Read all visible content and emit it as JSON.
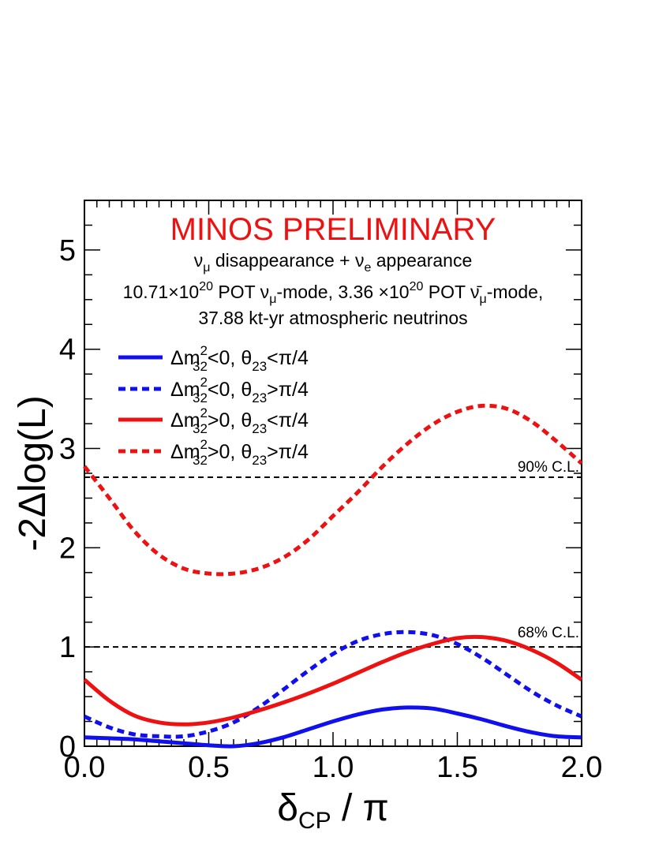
{
  "chart_data": {
    "type": "line",
    "title": "MINOS PRELIMINARY",
    "subtitle_lines": [
      [
        "ν",
        "μ",
        " disappearance + ν",
        "e",
        " appearance"
      ],
      [
        "10.71×10",
        "20",
        " POT ν",
        "μ",
        "-mode, 3.36 ×10",
        "20",
        " POT ν̄",
        "μ",
        "-mode,"
      ],
      [
        "37.88 kt-yr atmospheric neutrinos"
      ]
    ],
    "xlabel": {
      "main": "δ",
      "sub": "CP",
      "rest": " / π"
    },
    "ylabel": "-2Δlog(L)",
    "xlim": [
      0,
      2
    ],
    "ylim": [
      0,
      5.5
    ],
    "x_ticks": [
      0,
      0.5,
      1.0,
      1.5,
      2.0
    ],
    "x_tick_labels": [
      "0.0",
      "0.5",
      "1.0",
      "1.5",
      "2.0"
    ],
    "y_ticks": [
      0,
      1,
      2,
      3,
      4,
      5
    ],
    "y_tick_labels": [
      "0",
      "1",
      "2",
      "3",
      "4",
      "5"
    ],
    "grid": false,
    "legend_position": "upper-left",
    "reference_lines": [
      {
        "name": "90% C.L.",
        "y": 2.71,
        "label": "90% C.L."
      },
      {
        "name": "68% C.L.",
        "y": 1.0,
        "label": "68% C.L."
      }
    ],
    "series": [
      {
        "name": "Δm²32<0, θ23<π/4",
        "legend": {
          "a": "Δm",
          "sup": "2",
          "sub": "32",
          "b": "<0,  θ",
          "sub2": "23",
          "c": "<π/4"
        },
        "color": "#1010ee",
        "style": "solid",
        "x": [
          0,
          0.1,
          0.2,
          0.3,
          0.4,
          0.5,
          0.6,
          0.7,
          0.8,
          0.9,
          1.0,
          1.1,
          1.2,
          1.3,
          1.4,
          1.5,
          1.6,
          1.7,
          1.8,
          1.9,
          2.0
        ],
        "y": [
          0.09,
          0.08,
          0.07,
          0.05,
          0.03,
          0.01,
          0.0,
          0.03,
          0.09,
          0.17,
          0.25,
          0.32,
          0.37,
          0.39,
          0.38,
          0.33,
          0.27,
          0.2,
          0.14,
          0.1,
          0.09
        ]
      },
      {
        "name": "Δm²32<0, θ23>π/4",
        "legend": {
          "a": "Δm",
          "sup": "2",
          "sub": "32",
          "b": "<0,  θ",
          "sub2": "23",
          "c": ">π/4"
        },
        "color": "#1010ee",
        "style": "dashed",
        "x": [
          0,
          0.1,
          0.2,
          0.3,
          0.4,
          0.5,
          0.6,
          0.7,
          0.8,
          0.9,
          1.0,
          1.1,
          1.2,
          1.3,
          1.4,
          1.5,
          1.6,
          1.7,
          1.8,
          1.9,
          2.0
        ],
        "y": [
          0.3,
          0.19,
          0.12,
          0.1,
          0.1,
          0.15,
          0.24,
          0.39,
          0.57,
          0.76,
          0.93,
          1.06,
          1.13,
          1.15,
          1.12,
          1.03,
          0.89,
          0.72,
          0.55,
          0.41,
          0.3
        ]
      },
      {
        "name": "Δm²32>0, θ23<π/4",
        "legend": {
          "a": "Δm",
          "sup": "2",
          "sub": "32",
          "b": ">0,  θ",
          "sub2": "23",
          "c": "<π/4"
        },
        "color": "#ee1111",
        "style": "solid",
        "x": [
          0,
          0.1,
          0.2,
          0.3,
          0.4,
          0.5,
          0.6,
          0.7,
          0.8,
          0.9,
          1.0,
          1.1,
          1.2,
          1.3,
          1.4,
          1.5,
          1.6,
          1.7,
          1.8,
          1.9,
          2.0
        ],
        "y": [
          0.67,
          0.46,
          0.31,
          0.24,
          0.22,
          0.24,
          0.29,
          0.36,
          0.44,
          0.53,
          0.63,
          0.74,
          0.85,
          0.95,
          1.03,
          1.09,
          1.1,
          1.06,
          0.97,
          0.84,
          0.67
        ]
      },
      {
        "name": "Δm²32>0, θ23>π/4",
        "legend": {
          "a": "Δm",
          "sup": "2",
          "sub": "32",
          "b": ">0,  θ",
          "sub2": "23",
          "c": ">π/4"
        },
        "color": "#ee1111",
        "style": "dashed",
        "x": [
          0,
          0.1,
          0.2,
          0.3,
          0.4,
          0.5,
          0.6,
          0.7,
          0.8,
          0.9,
          1.0,
          1.1,
          1.2,
          1.3,
          1.4,
          1.5,
          1.6,
          1.7,
          1.8,
          1.9,
          2.0
        ],
        "y": [
          2.82,
          2.5,
          2.17,
          1.93,
          1.79,
          1.74,
          1.74,
          1.79,
          1.9,
          2.08,
          2.32,
          2.56,
          2.82,
          3.05,
          3.24,
          3.37,
          3.43,
          3.4,
          3.27,
          3.07,
          2.85
        ]
      }
    ]
  }
}
